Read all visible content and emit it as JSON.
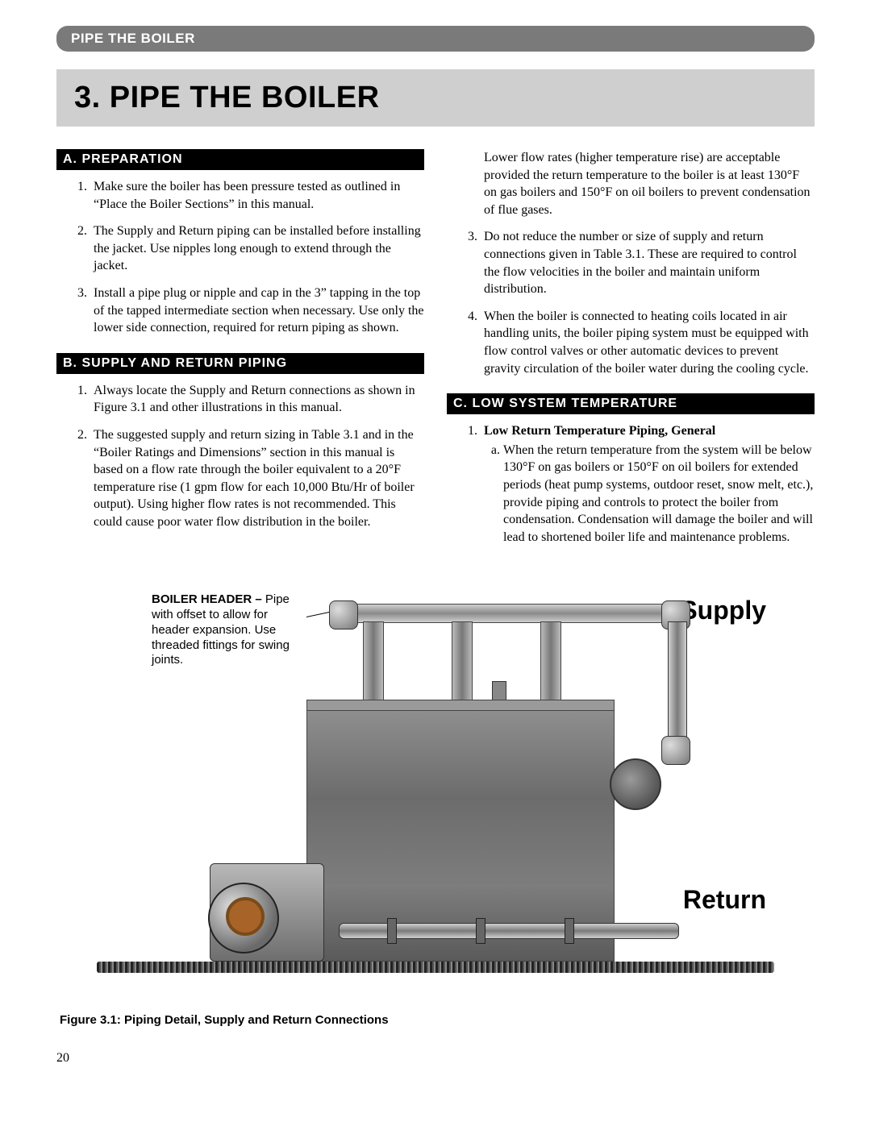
{
  "header_pill": "PIPE THE BOILER",
  "chapter_title": "3. PIPE THE BOILER",
  "page_number": "20",
  "colors": {
    "pill_bg": "#7a7a7a",
    "title_bg": "#cfcfcf",
    "section_bg": "#000000",
    "text": "#000000"
  },
  "sections": {
    "A": {
      "label": "A.  PREPARATION",
      "items": [
        "Make sure the boiler has been pressure tested as outlined in “Place the Boiler Sections” in this manual.",
        "The Supply and Return piping can be installed before installing the jacket. Use nipples long enough to extend through the jacket.",
        "Install a pipe plug or nipple and cap in the 3” tapping in the top of the tapped intermediate section when necessary. Use only the lower side connection, required for return piping as shown."
      ]
    },
    "B": {
      "label": "B.  SUPPLY AND RETURN PIPING",
      "items": [
        "Always locate the Supply and Return connections as shown in Figure 3.1 and other illustrations in this manual.",
        "The suggested supply and return sizing in Table 3.1 and in the “Boiler Ratings and Dimensions” section in this manual is based on a flow rate through the boiler equivalent to a 20°F temperature rise (1 gpm flow for each 10,000 Btu/Hr of boiler output). Using higher flow rates is not recommended. This could cause poor water flow distribution in the boiler."
      ],
      "overflow_para": "Lower flow rates (higher temperature rise) are acceptable provided the return temperature to the boiler is at least 130°F on gas boilers and 150°F on oil boilers to prevent condensation of flue gases.",
      "items_cont": [
        "Do not reduce the number or size of supply and return connections given in Table 3.1. These are required to control the flow velocities in the boiler and maintain uniform distribution.",
        "When the boiler is connected to heating coils located in air handling units, the boiler piping system must be equipped with flow control valves or other automatic devices to prevent gravity circulation of the boiler water during the cooling cycle."
      ]
    },
    "C": {
      "label": "C.  LOW SYSTEM TEMPERATURE",
      "item1_title": "Low Return Temperature Piping, General",
      "item1_a": "When the return temperature from the system will be below 130°F on gas boilers or 150°F on oil boilers for extended periods (heat pump systems, outdoor reset, snow melt, etc.), provide piping and controls to protect the boiler from condensation. Condensation will damage the boiler and will lead to shortened boiler life and maintenance problems."
    }
  },
  "figure": {
    "caption": "Figure 3.1: Piping Detail, Supply and Return Connections",
    "callout_header_bold": "BOILER HEADER –",
    "callout_header_rest": "Pipe with offset to allow for header expansion. Use threaded fittings for swing joints.",
    "label_supply": "Supply",
    "label_return": "Return"
  }
}
